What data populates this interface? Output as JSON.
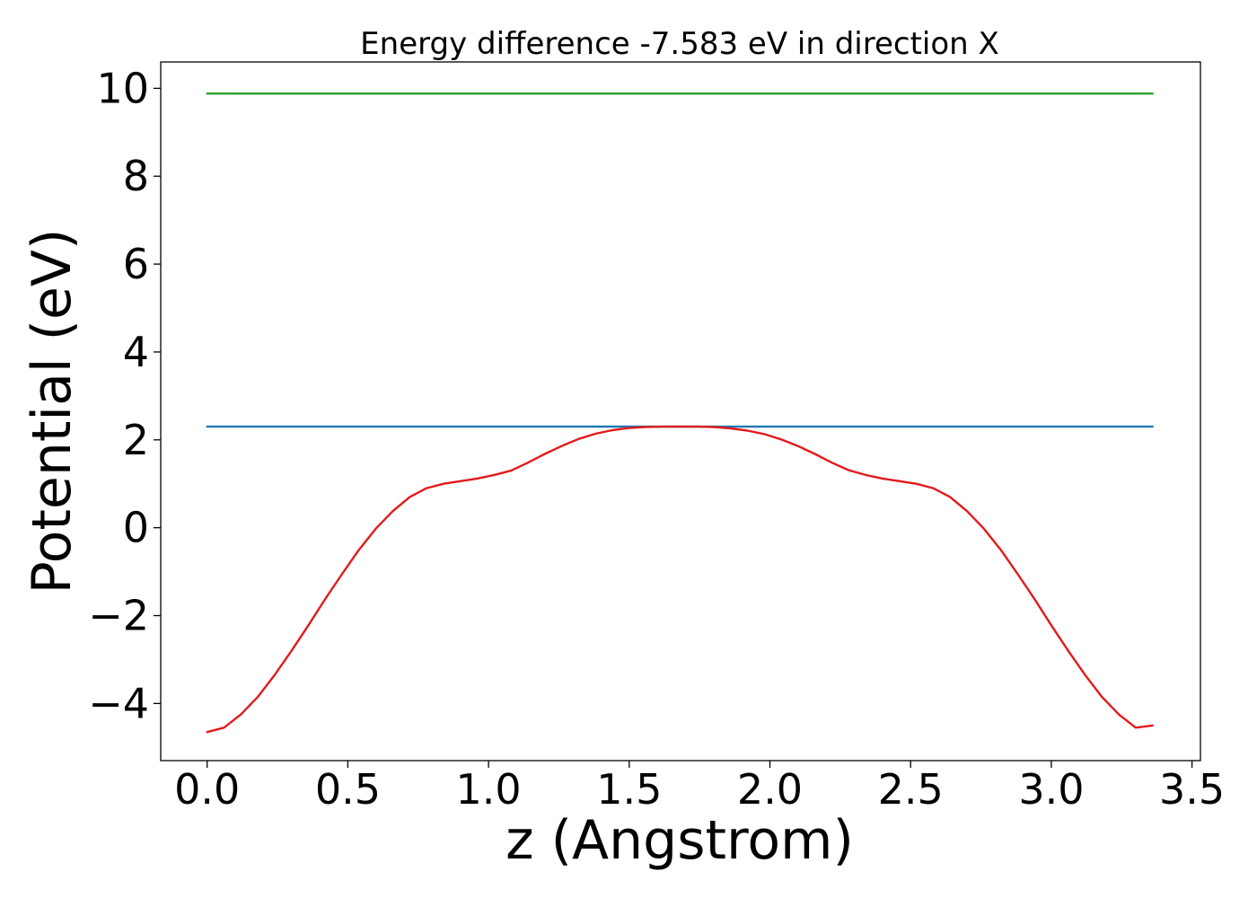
{
  "chart_data": {
    "type": "line",
    "title": "Energy difference -7.583 eV in direction X",
    "xlabel": "z (Angstrom)",
    "ylabel": "Potential (eV)",
    "xlim": [
      -0.165,
      3.53
    ],
    "ylim": [
      -5.3,
      10.6
    ],
    "xticks": [
      0.0,
      0.5,
      1.0,
      1.5,
      2.0,
      2.5,
      3.0,
      3.5
    ],
    "xtick_labels": [
      "0.0",
      "0.5",
      "1.0",
      "1.5",
      "2.0",
      "2.5",
      "3.0",
      "3.5"
    ],
    "yticks": [
      -4,
      -2,
      0,
      2,
      4,
      6,
      8,
      10
    ],
    "ytick_labels": [
      "−4",
      "−2",
      "0",
      "2",
      "4",
      "6",
      "8",
      "10"
    ],
    "grid": false,
    "series": [
      {
        "color": "#2ca02c",
        "x": [
          0.0,
          3.36
        ],
        "y": [
          9.88,
          9.88
        ]
      },
      {
        "color": "#1f77b4",
        "x": [
          0.0,
          3.36
        ],
        "y": [
          2.3,
          2.3
        ]
      },
      {
        "color": "#e31a1c",
        "x": [
          0.0,
          0.06,
          0.12,
          0.18,
          0.24,
          0.3,
          0.36,
          0.42,
          0.48,
          0.54,
          0.6,
          0.66,
          0.72,
          0.78,
          0.84,
          0.9,
          0.96,
          1.02,
          1.08,
          1.14,
          1.2,
          1.26,
          1.32,
          1.38,
          1.44,
          1.5,
          1.56,
          1.62,
          1.68,
          1.74,
          1.8,
          1.86,
          1.92,
          1.98,
          2.04,
          2.1,
          2.16,
          2.22,
          2.28,
          2.34,
          2.4,
          2.46,
          2.52,
          2.58,
          2.64,
          2.7,
          2.76,
          2.82,
          2.88,
          2.94,
          3.0,
          3.06,
          3.12,
          3.18,
          3.24,
          3.3,
          3.36
        ],
        "y": [
          -4.65,
          -4.55,
          -4.25,
          -3.85,
          -3.35,
          -2.8,
          -2.22,
          -1.62,
          -1.05,
          -0.5,
          -0.02,
          0.38,
          0.7,
          0.9,
          1.0,
          1.06,
          1.12,
          1.2,
          1.3,
          1.48,
          1.68,
          1.86,
          2.02,
          2.14,
          2.22,
          2.27,
          2.29,
          2.3,
          2.3,
          2.3,
          2.29,
          2.26,
          2.21,
          2.13,
          2.01,
          1.86,
          1.68,
          1.48,
          1.31,
          1.2,
          1.12,
          1.06,
          1.0,
          0.9,
          0.7,
          0.38,
          -0.02,
          -0.5,
          -1.05,
          -1.62,
          -2.22,
          -2.8,
          -3.35,
          -3.85,
          -4.25,
          -4.55,
          -4.5
        ]
      }
    ]
  }
}
